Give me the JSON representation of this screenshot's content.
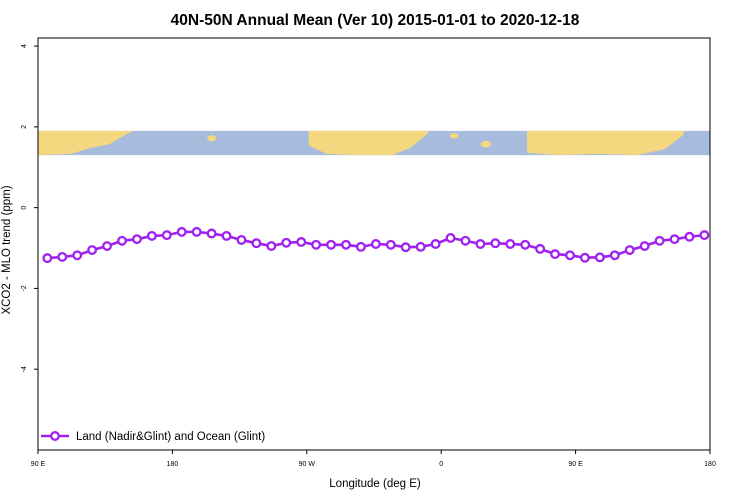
{
  "chart_data": {
    "type": "line",
    "title": "40N-50N Annual Mean (Ver 10)   2015-01-01 to 2020-12-18",
    "xlabel": "Longitude (deg E)",
    "ylabel": "XCO2 - MLO trend (ppm)",
    "xlim": [
      90,
      450
    ],
    "ylim": [
      -6,
      4.2
    ],
    "x_ticks": [
      90,
      162,
      234,
      306,
      378,
      450
    ],
    "x_tick_labels": [
      "90 E",
      "180",
      "90 W",
      "0",
      "90 E",
      "180"
    ],
    "y_ticks": [
      -4,
      -2,
      0,
      2,
      4
    ],
    "y_tick_labels": [
      "-4",
      "-2",
      "0",
      "2",
      "4"
    ],
    "map_band": {
      "y_range": [
        1.3,
        1.9
      ],
      "land_color": "#F4D77E",
      "ocean_color": "#A7BCDD"
    },
    "series": [
      {
        "name": "Land (Nadir&Glint) and Ocean (Glint)",
        "color": "#A020F0",
        "x": [
          95,
          103,
          111,
          119,
          127,
          135,
          143,
          151,
          159,
          167,
          175,
          183,
          191,
          199,
          207,
          215,
          223,
          231,
          239,
          247,
          255,
          263,
          271,
          279,
          287,
          295,
          303,
          311,
          319,
          327,
          335,
          343,
          351,
          359,
          367,
          375,
          383,
          391,
          399,
          407,
          415,
          423,
          431,
          439,
          447
        ],
        "y": [
          -1.25,
          -1.22,
          -1.18,
          -1.05,
          -0.95,
          -0.82,
          -0.78,
          -0.7,
          -0.68,
          -0.6,
          -0.6,
          -0.64,
          -0.7,
          -0.8,
          -0.88,
          -0.95,
          -0.87,
          -0.85,
          -0.92,
          -0.92,
          -0.92,
          -0.97,
          -0.9,
          -0.92,
          -0.98,
          -0.97,
          -0.9,
          -0.75,
          -0.82,
          -0.9,
          -0.88,
          -0.9,
          -0.92,
          -1.02,
          -1.15,
          -1.18,
          -1.24,
          -1.23,
          -1.18,
          -1.05,
          -0.95,
          -0.82,
          -0.78,
          -0.72,
          -0.68
        ]
      }
    ],
    "legend_position": "bottom-left",
    "grid": false
  }
}
